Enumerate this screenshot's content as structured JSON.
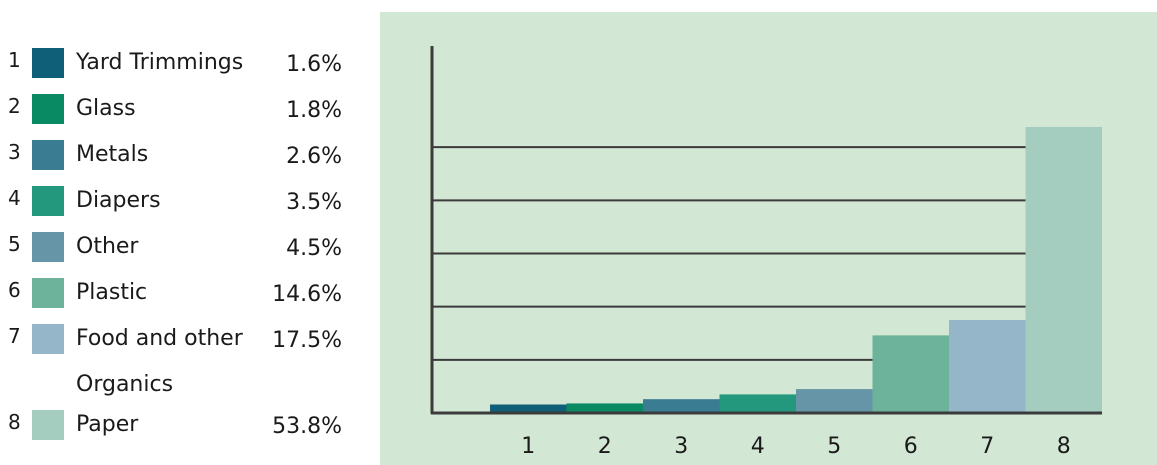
{
  "legend": [
    {
      "num": "1",
      "label": "Yard Trimmings",
      "value": "1.6%",
      "color": "#0f5f79"
    },
    {
      "num": "2",
      "label": "Glass",
      "value": "1.8%",
      "color": "#0a8a63"
    },
    {
      "num": "3",
      "label": "Metals",
      "value": "2.6%",
      "color": "#3a7c91"
    },
    {
      "num": "4",
      "label": "Diapers",
      "value": "3.5%",
      "color": "#23987c"
    },
    {
      "num": "5",
      "label": "Other",
      "value": "4.5%",
      "color": "#6695a8"
    },
    {
      "num": "6",
      "label": "Plastic",
      "value": "14.6%",
      "color": "#6db39b"
    },
    {
      "num": "7",
      "label": "Food and other",
      "label2": "Organics",
      "value": "17.5%",
      "color": "#95b5c8"
    },
    {
      "num": "8",
      "label": "Paper",
      "value": "53.8%",
      "color": "#a4cdbf"
    }
  ],
  "chart_data": {
    "type": "bar",
    "categories": [
      "1",
      "2",
      "3",
      "4",
      "5",
      "6",
      "7",
      "8"
    ],
    "values": [
      1.6,
      1.8,
      2.6,
      3.5,
      4.5,
      14.6,
      17.5,
      53.8
    ],
    "colors": [
      "#0f5f79",
      "#0a8a63",
      "#3a7c91",
      "#23987c",
      "#6695a8",
      "#6db39b",
      "#95b5c8",
      "#a4cdbf"
    ],
    "ylim": [
      0,
      60
    ],
    "grid": true,
    "background": "#d3e7d5",
    "axis_color": "#3b3b3b"
  }
}
